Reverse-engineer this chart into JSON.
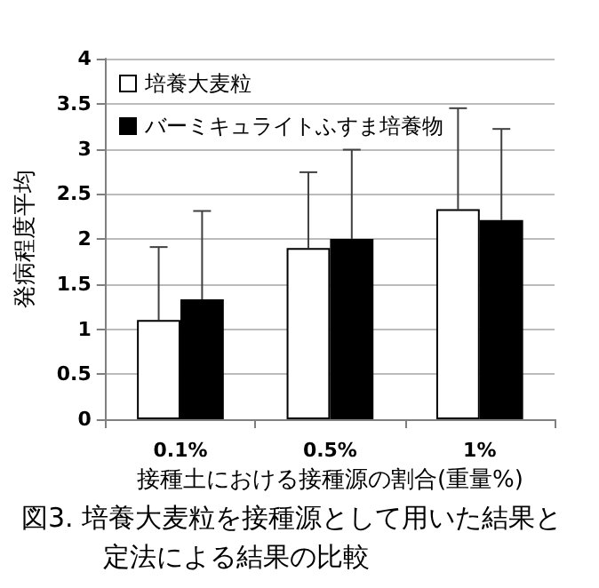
{
  "chart_data": {
    "type": "bar",
    "categories": [
      "0.1%",
      "0.5%",
      "1%"
    ],
    "series": [
      {
        "name": "培養大麦粒",
        "color": "#ffffff",
        "values": [
          1.1,
          1.9,
          2.33
        ],
        "errors": [
          [
            1.1,
            1.91
          ],
          [
            1.9,
            2.74
          ],
          [
            2.33,
            3.45
          ]
        ]
      },
      {
        "name": "バーミキュライトふすま培養物",
        "color": "#000000",
        "values": [
          1.33,
          2.0,
          2.21
        ],
        "errors": [
          [
            1.33,
            2.31
          ],
          [
            2.0,
            2.99
          ],
          [
            2.21,
            3.22
          ]
        ]
      }
    ],
    "xlabel": "接種土における接種源の割合(重量%)",
    "ylabel": "発病程度平均",
    "annotations": [
      "図3. 培養大麦粒を接種源として用いた結果と",
      "定法による結果の比較"
    ],
    "ylim": [
      0,
      4
    ],
    "yticks": [
      0,
      0.5,
      1,
      1.5,
      2,
      2.5,
      3,
      3.5,
      4
    ],
    "grid": "y",
    "legend": "top left"
  }
}
